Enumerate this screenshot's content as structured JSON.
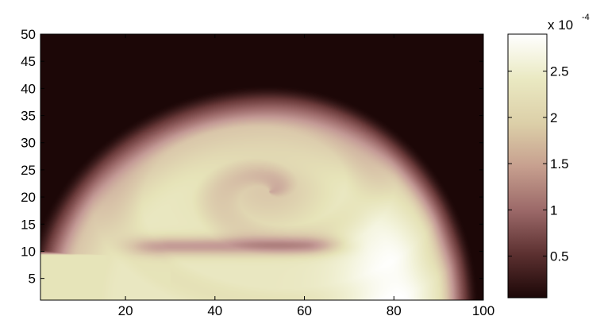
{
  "chart_data": {
    "type": "heatmap",
    "title": "",
    "xlabel": "",
    "ylabel": "",
    "xlim": [
      1,
      100
    ],
    "ylim": [
      1,
      50
    ],
    "x_ticks": [
      20,
      40,
      60,
      80,
      100
    ],
    "y_ticks": [
      5,
      10,
      15,
      20,
      25,
      30,
      35,
      40,
      45,
      50
    ],
    "grid": false,
    "colormap": "pink",
    "colormap_stops": [
      "#1c0707",
      "#6a3a3a",
      "#9b6868",
      "#c39995",
      "#d8c3a8",
      "#e6e3b8",
      "#f2f2d8",
      "#ffffff"
    ],
    "colorbar": {
      "scale_label": "x 10",
      "scale_exponent": "-4",
      "range": [
        0.05,
        2.9
      ],
      "ticks": [
        0.5,
        1,
        1.5,
        2,
        2.5
      ],
      "tick_labels": [
        "0.5",
        "1",
        "1.5",
        "2",
        "2.5"
      ]
    },
    "field_description_values": {
      "background": 0.05,
      "spiral_core_x": 52,
      "spiral_core_y": 21,
      "spiral_core_value": 1.7,
      "bright_region_value": 2.2,
      "max_value_near_x": 80,
      "max_value_near_y": 3,
      "max_value": 2.9,
      "front_top_y": 40,
      "front_right_x": 98,
      "inlet_band_y": [
        0,
        10.5
      ],
      "inlet_band_value": 2.1
    }
  }
}
